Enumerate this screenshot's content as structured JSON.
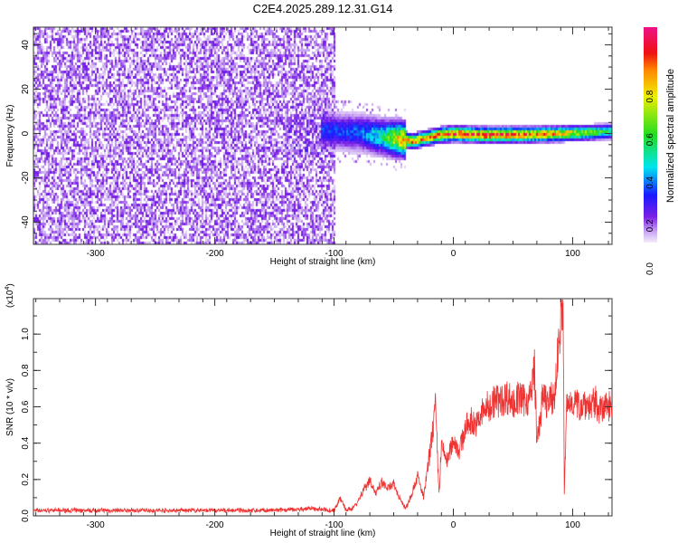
{
  "chart_data": [
    {
      "type": "heatmap",
      "title": "C2E4.2025.289.12.31.G14",
      "xlabel": "Height of straight line (km)",
      "ylabel": "Frequency (Hz)",
      "xlim": [
        -352,
        133
      ],
      "ylim": [
        -50,
        48
      ],
      "xticks": [
        -300,
        -200,
        -100,
        0,
        100
      ],
      "yticks": [
        -40,
        -20,
        0,
        20,
        40
      ],
      "colorbar": {
        "label": "Normalized spectral amplitude",
        "range": [
          0,
          1
        ],
        "ticks": [
          "0.0",
          "0.2",
          "0.4",
          "0.6",
          "0.8"
        ]
      },
      "noise_region_km": [
        -352,
        -100
      ],
      "ridge": {
        "height_km": [
          -110,
          -80,
          -60,
          -45,
          -35,
          -20,
          -10,
          0,
          20,
          60,
          90,
          133
        ],
        "frequency_hz": [
          2,
          1,
          -1,
          -2,
          -3,
          -1,
          0,
          0.5,
          0,
          0,
          0.5,
          1.5
        ],
        "amplitude": [
          0.25,
          0.3,
          0.45,
          0.8,
          0.85,
          0.85,
          0.9,
          0.95,
          0.95,
          0.9,
          0.8,
          0.45
        ]
      }
    },
    {
      "type": "line",
      "xlabel": "Height of straight line (km)",
      "ylabel": "SNR (10 * v/v)",
      "yscale_label": "(x10",
      "yscale_exp": "4",
      "xlim": [
        -352,
        133
      ],
      "ylim": [
        0,
        1.195
      ],
      "xticks": [
        -300,
        -200,
        -100,
        0,
        100
      ],
      "yticks": [
        "0.0",
        "0.2",
        "0.4",
        "0.6",
        "0.8",
        "1.0"
      ],
      "color": "#ee3333",
      "series": [
        {
          "name": "SNR",
          "x": [
            -350,
            -330,
            -310,
            -290,
            -270,
            -250,
            -230,
            -210,
            -190,
            -170,
            -150,
            -130,
            -120,
            -110,
            -100,
            -95,
            -90,
            -85,
            -80,
            -75,
            -70,
            -65,
            -60,
            -55,
            -50,
            -45,
            -40,
            -35,
            -30,
            -25,
            -20,
            -15,
            -12,
            -10,
            -5,
            0,
            5,
            10,
            15,
            20,
            25,
            30,
            35,
            40,
            45,
            50,
            55,
            60,
            65,
            68,
            70,
            75,
            80,
            85,
            90,
            92,
            93,
            95,
            100,
            105,
            110,
            115,
            120,
            125,
            130
          ],
          "y": [
            0.03,
            0.03,
            0.03,
            0.03,
            0.03,
            0.03,
            0.03,
            0.03,
            0.03,
            0.03,
            0.03,
            0.035,
            0.04,
            0.035,
            0.03,
            0.1,
            0.03,
            0.04,
            0.08,
            0.15,
            0.2,
            0.12,
            0.18,
            0.15,
            0.17,
            0.1,
            0.04,
            0.12,
            0.22,
            0.1,
            0.33,
            0.6,
            0.12,
            0.38,
            0.3,
            0.42,
            0.36,
            0.48,
            0.52,
            0.5,
            0.58,
            0.6,
            0.64,
            0.63,
            0.66,
            0.62,
            0.65,
            0.63,
            0.66,
            0.83,
            0.4,
            0.65,
            0.62,
            0.66,
            1.1,
            1.19,
            0.12,
            0.6,
            0.64,
            0.6,
            0.63,
            0.6,
            0.62,
            0.57,
            0.62
          ]
        }
      ]
    }
  ]
}
